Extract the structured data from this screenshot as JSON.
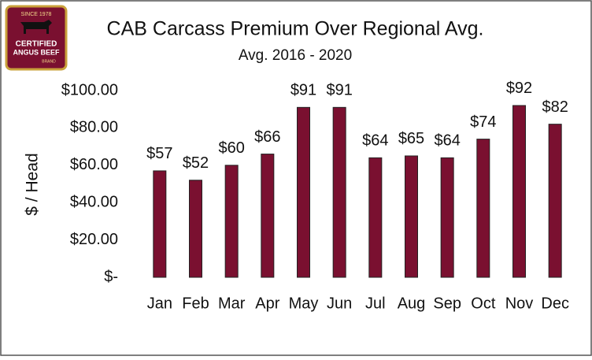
{
  "chart_data": {
    "type": "bar",
    "title": "CAB Carcass Premium Over Regional Avg.",
    "subtitle": "Avg. 2016 - 2020",
    "y_label": "$ / Head",
    "categories": [
      "Jan",
      "Feb",
      "Mar",
      "Apr",
      "May",
      "Jun",
      "Jul",
      "Aug",
      "Sep",
      "Oct",
      "Nov",
      "Dec"
    ],
    "values": [
      57,
      52,
      60,
      66,
      91,
      91,
      64,
      65,
      64,
      74,
      92,
      82
    ],
    "value_labels": [
      "$57",
      "$52",
      "$60",
      "$66",
      "$91",
      "$91",
      "$64",
      "$65",
      "$64",
      "$74",
      "$92",
      "$82"
    ],
    "color": "#7a1030",
    "ylim": [
      0,
      100
    ],
    "yticks": [
      {
        "value": 0,
        "label": "$-"
      },
      {
        "value": 20,
        "label": "$20.00"
      },
      {
        "value": 40,
        "label": "$40.00"
      },
      {
        "value": 60,
        "label": "$60.00"
      },
      {
        "value": 80,
        "label": "$80.00"
      },
      {
        "value": 100,
        "label": "$100.00"
      }
    ],
    "grid": false
  },
  "logo": {
    "since": "SINCE 1978",
    "line1": "CERTIFIED",
    "line2": "ANGUS BEEF",
    "brand": "BRAND"
  }
}
